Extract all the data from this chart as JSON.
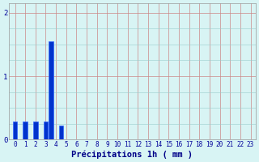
{
  "bar_positions": [
    0,
    1,
    2,
    3,
    3.5,
    4.5
  ],
  "bar_heights": [
    0.28,
    0.28,
    0.28,
    0.28,
    1.55,
    0.22
  ],
  "bar_width": 0.45,
  "bar_color": "#0033cc",
  "bar_edge_color": "#3366ff",
  "background_color": "#d8f4f4",
  "grid_color_major": "#cc8888",
  "grid_color_minor": "#99cccc",
  "xlabel": "Précipitations 1h ( mm )",
  "xlabel_color": "#000088",
  "ylabel_ticks": [
    0,
    1,
    2
  ],
  "xlim": [
    -0.6,
    23.5
  ],
  "ylim": [
    0,
    2.15
  ],
  "xticks": [
    0,
    1,
    2,
    3,
    4,
    5,
    6,
    7,
    8,
    9,
    10,
    11,
    12,
    13,
    14,
    15,
    16,
    17,
    18,
    19,
    20,
    21,
    22,
    23
  ],
  "tick_color": "#000099",
  "tick_label_fontsize": 5.5,
  "xlabel_fontsize": 7.5,
  "figure_bg": "#d8f4f4"
}
